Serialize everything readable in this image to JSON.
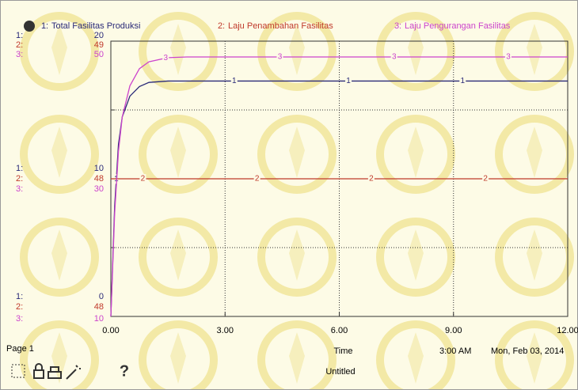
{
  "chart_data": {
    "type": "line",
    "x": [
      0,
      0.1,
      0.2,
      0.3,
      0.5,
      0.75,
      1,
      1.5,
      2,
      3,
      6,
      9,
      12
    ],
    "xlim": [
      0,
      12
    ],
    "xticks": [
      {
        "value": 0,
        "label": "0.00"
      },
      {
        "value": 3,
        "label": "3.00"
      },
      {
        "value": 6,
        "label": "6.00"
      },
      {
        "value": 9,
        "label": "9.00"
      },
      {
        "value": 12,
        "label": "12.00"
      }
    ],
    "xlabel": "Time",
    "ygrid": [
      5,
      10,
      15
    ],
    "series": [
      {
        "key": "1:",
        "marker": "1",
        "name": "Total Fasilitas Produksi",
        "color": "#2a2a78",
        "values": [
          0,
          8,
          12.5,
          14.5,
          16,
          16.7,
          17,
          17.1,
          17.1,
          17.1,
          17.1,
          17.1,
          17.1
        ],
        "ylim": [
          0,
          20
        ],
        "yticks": [
          0,
          10,
          20
        ]
      },
      {
        "key": "2:",
        "marker": "2",
        "name": "Laju Penambahan  Fasilitas",
        "color": "#c0392b",
        "values": [
          48.5,
          48.5,
          48.5,
          48.5,
          48.5,
          48.5,
          48.5,
          48.5,
          48.5,
          48.5,
          48.5,
          48.5,
          48.5
        ],
        "ylim": [
          48,
          49
        ],
        "yticks": [
          48,
          {
            "value": 48.5,
            "label": "48"
          },
          49
        ]
      },
      {
        "key": "3:",
        "marker": "3",
        "name": "Laju Pengurangan Fasilitas",
        "color": "#cc44cc",
        "values": [
          10,
          25,
          34,
          39,
          43.5,
          46,
          47,
          47.6,
          47.7,
          47.7,
          47.7,
          47.7,
          47.7
        ],
        "ylim": [
          10,
          50
        ],
        "yticks": [
          10,
          30,
          50
        ]
      }
    ]
  },
  "footer": {
    "page": "Page 1",
    "time": "3:00 AM",
    "date": "Mon, Feb 03, 2014",
    "title": "Untitled",
    "help": "?"
  }
}
